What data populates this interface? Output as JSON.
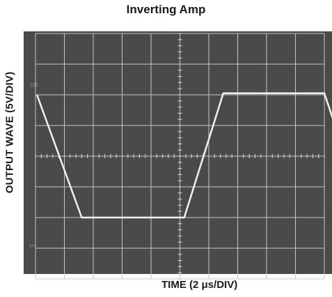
{
  "chart_data": {
    "type": "line",
    "title": "Inverting Amp",
    "ylabel": "OUTPUT WAVE (5V/DIV)",
    "xlabel": "TIME (2 μs/DIV)",
    "graticule": {
      "x_divisions": 10,
      "y_divisions": 8
    },
    "grid": true,
    "xlim": [
      0,
      10
    ],
    "ylim": [
      -4,
      4
    ],
    "screen_marks": {
      "upper_left": "100",
      "lower_left": "0%"
    },
    "series": [
      {
        "points": [
          {
            "x": 0.05,
            "y": 2.0
          },
          {
            "x": 1.6,
            "y": -2.0
          },
          {
            "x": 5.15,
            "y": -2.0
          },
          {
            "x": 6.5,
            "y": 2.05
          },
          {
            "x": 10.0,
            "y": 2.05
          },
          {
            "x": 10.55,
            "y": 0.5
          }
        ]
      }
    ],
    "colors": {
      "screen": "#4a4a4a",
      "grid": "#c8c8c8",
      "trace": "#f2f2f2",
      "text": "#1a1a1a"
    }
  }
}
